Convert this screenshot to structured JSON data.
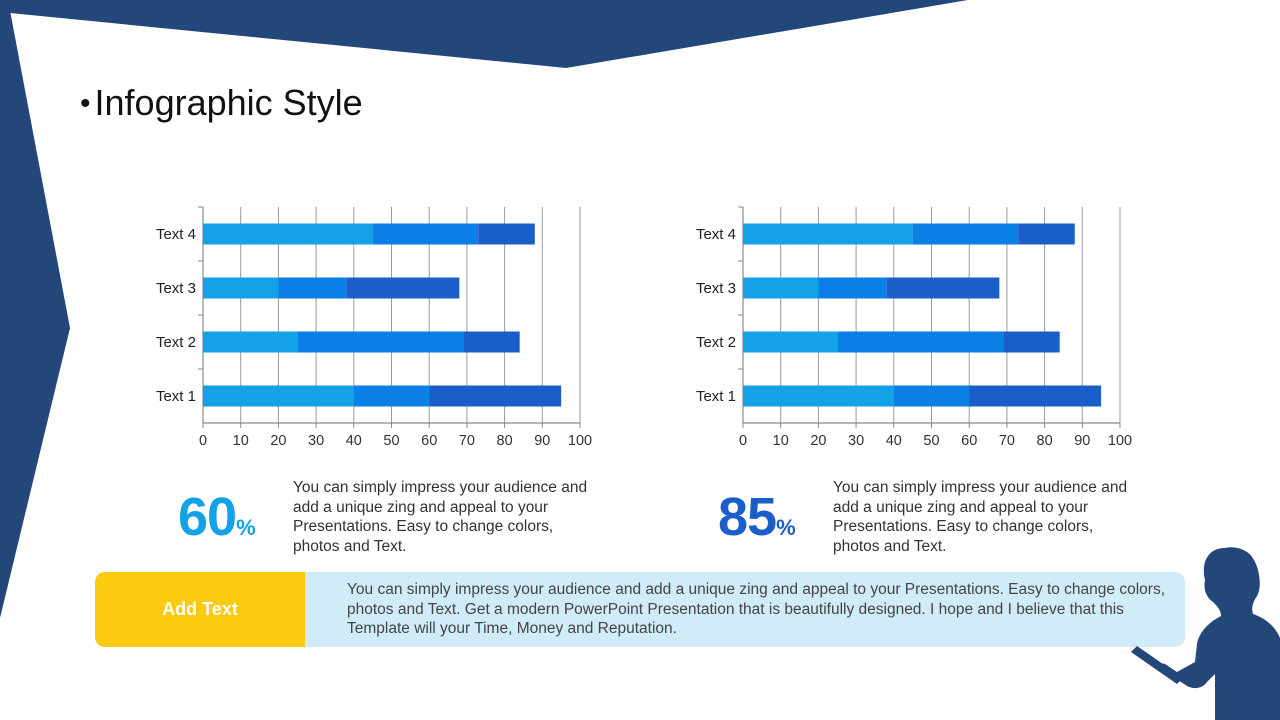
{
  "title": "Infographic Style",
  "colors": {
    "navy": "#234779",
    "seg1": "#13a1e8",
    "seg2": "#0a7fe6",
    "seg3": "#1c5ec9",
    "pct_left": "#13a1e8",
    "pct_right": "#1c5ec9",
    "add_text_bg": "#fccb10",
    "bottom_bg": "#d0ecf8"
  },
  "chart_data": [
    {
      "type": "bar",
      "orientation": "horizontal",
      "stacked": true,
      "categories": [
        "Text 1",
        "Text 2",
        "Text 3",
        "Text 4"
      ],
      "series": [
        {
          "values": [
            40,
            25,
            20,
            45
          ]
        },
        {
          "values": [
            20,
            44,
            18,
            28
          ]
        },
        {
          "values": [
            35,
            15,
            30,
            15
          ]
        }
      ],
      "xlim": [
        0,
        100
      ],
      "xticks": [
        0,
        10,
        20,
        30,
        40,
        50,
        60,
        70,
        80,
        90,
        100
      ],
      "grid": true,
      "title": "",
      "xlabel": "",
      "ylabel": ""
    },
    {
      "type": "bar",
      "orientation": "horizontal",
      "stacked": true,
      "categories": [
        "Text 1",
        "Text 2",
        "Text 3",
        "Text 4"
      ],
      "series": [
        {
          "values": [
            40,
            25,
            20,
            45
          ]
        },
        {
          "values": [
            20,
            44,
            18,
            28
          ]
        },
        {
          "values": [
            35,
            15,
            30,
            15
          ]
        }
      ],
      "xlim": [
        0,
        100
      ],
      "xticks": [
        0,
        10,
        20,
        30,
        40,
        50,
        60,
        70,
        80,
        90,
        100
      ],
      "grid": true,
      "title": "",
      "xlabel": "",
      "ylabel": ""
    }
  ],
  "stats": [
    {
      "value": "60",
      "unit": "%",
      "text": "You can simply impress your audience and add a unique zing and appeal to your Presentations. Easy to change colors, photos and Text."
    },
    {
      "value": "85",
      "unit": "%",
      "text": "You can simply impress your audience and add a unique zing and appeal to your Presentations. Easy to change colors, photos and Text."
    }
  ],
  "bottom": {
    "label": "Add Text",
    "text": "You can simply impress your audience and add a unique zing and appeal to your Presentations. Easy to change colors, photos and Text. Get a modern PowerPoint  Presentation that is beautifully designed. I hope and I believe that this Template will your Time, Money and Reputation."
  },
  "icons": {
    "silhouette": "woman-with-clipboard-silhouette-icon"
  }
}
